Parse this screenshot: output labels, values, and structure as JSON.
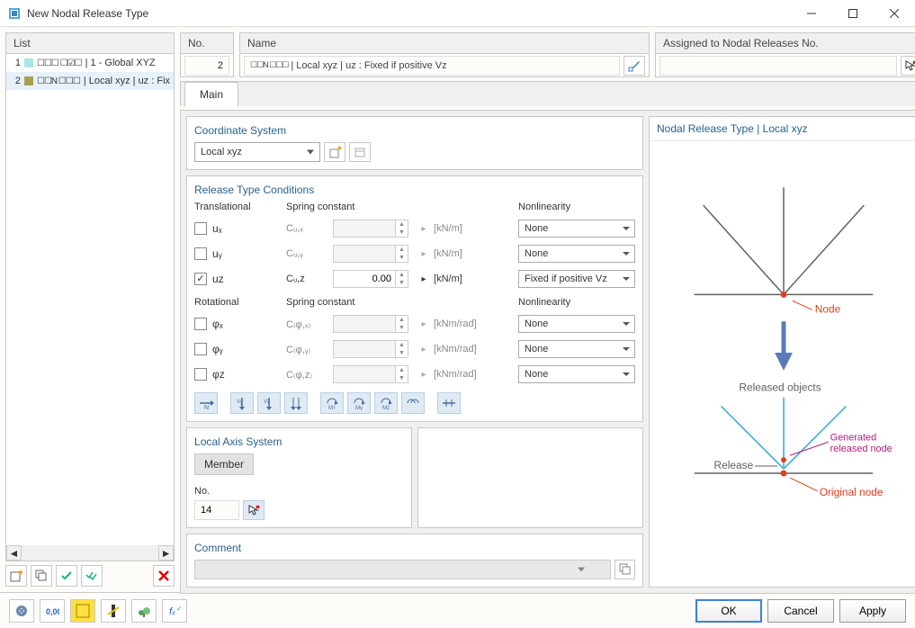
{
  "window": {
    "title": "New Nodal Release Type"
  },
  "listPanel": {
    "header": "List",
    "items": [
      {
        "num": "1",
        "color": "#a8e6e6",
        "glyphs": "☐☐☐ ☐☑☐",
        "label": "| 1 - Global XYZ"
      },
      {
        "num": "2",
        "color": "#a8a050",
        "glyphs": "☐☐N ☐☐☐",
        "label": "| Local xyz | uᴢ : Fix"
      }
    ]
  },
  "noPanel": {
    "header": "No.",
    "value": "2"
  },
  "namePanel": {
    "header": "Name",
    "glyphs": "☐☐N ☐☐☐",
    "value": "| Local xyz | uᴢ : Fixed if positive Vᴢ"
  },
  "assignedPanel": {
    "header": "Assigned to Nodal Releases No.",
    "value": ""
  },
  "tabMain": "Main",
  "coordSystem": {
    "title": "Coordinate System",
    "value": "Local xyz"
  },
  "releaseType": {
    "title": "Release Type Conditions",
    "translationalHeader": "Translational",
    "rotationalHeader": "Rotational",
    "springHeader": "Spring constant",
    "nonlinHeader": "Nonlinearity",
    "rows": [
      {
        "checked": false,
        "label": "uₓ",
        "spring": "Cᵤ,ₓ",
        "value": "",
        "unit": "[kN/m]",
        "nonlin": "None",
        "active": false
      },
      {
        "checked": false,
        "label": "uᵧ",
        "spring": "Cᵤ,ᵧ",
        "value": "",
        "unit": "[kN/m]",
        "nonlin": "None",
        "active": false
      },
      {
        "checked": true,
        "label": "uᴢ",
        "spring": "Cᵤ,ᴢ",
        "value": "0.00",
        "unit": "[kN/m]",
        "nonlin": "Fixed if positive Vᴢ",
        "active": true
      }
    ],
    "rotRows": [
      {
        "checked": false,
        "label": "φₓ",
        "spring": "C₍φ,ₓ₎",
        "value": "",
        "unit": "[kNm/rad]",
        "nonlin": "None",
        "active": false
      },
      {
        "checked": false,
        "label": "φᵧ",
        "spring": "C₍φ,ᵧ₎",
        "value": "",
        "unit": "[kNm/rad]",
        "nonlin": "None",
        "active": false
      },
      {
        "checked": false,
        "label": "φᴢ",
        "spring": "C₍φ,ᴢ₎",
        "value": "",
        "unit": "[kNm/rad]",
        "nonlin": "None",
        "active": false
      }
    ]
  },
  "localAxis": {
    "title": "Local Axis System",
    "value": "Member",
    "noLabel": "No.",
    "noValue": "14"
  },
  "comment": {
    "title": "Comment"
  },
  "preview": {
    "title": "Nodal Release Type | Local xyz",
    "labelNode": "Node",
    "labelReleased": "Released objects",
    "labelRelease": "Release",
    "labelGenerated1": "Generated",
    "labelGenerated2": "released node",
    "labelOriginal": "Original node"
  },
  "buttons": {
    "ok": "OK",
    "cancel": "Cancel",
    "apply": "Apply"
  },
  "colors": {
    "headerBlue": "#28628f",
    "nodeRed": "#e04020",
    "magenta": "#b02080",
    "cyan": "#30a8d0",
    "gray": "#606060",
    "blueArrow": "#5a7ab8"
  }
}
